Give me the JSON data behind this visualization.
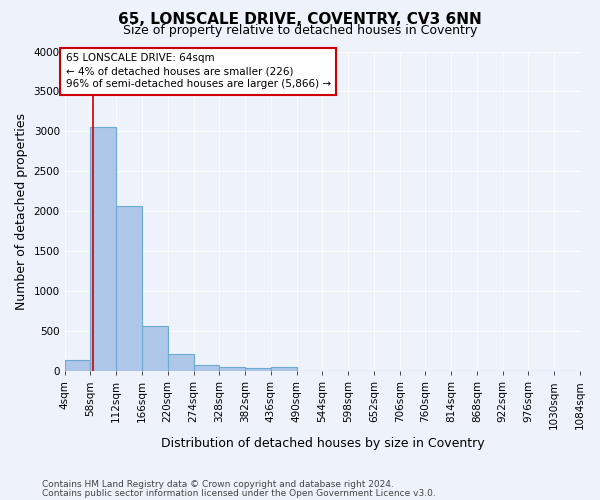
{
  "title1": "65, LONSCALE DRIVE, COVENTRY, CV3 6NN",
  "title2": "Size of property relative to detached houses in Coventry",
  "xlabel": "Distribution of detached houses by size in Coventry",
  "ylabel": "Number of detached properties",
  "footer1": "Contains HM Land Registry data © Crown copyright and database right 2024.",
  "footer2": "Contains public sector information licensed under the Open Government Licence v3.0.",
  "annotation_title": "65 LONSCALE DRIVE: 64sqm",
  "annotation_line2": "← 4% of detached houses are smaller (226)",
  "annotation_line3": "96% of semi-detached houses are larger (5,866) →",
  "bin_edges": [
    4,
    58,
    112,
    166,
    220,
    274,
    328,
    382,
    436,
    490,
    544,
    598,
    652,
    706,
    760,
    814,
    868,
    922,
    976,
    1030,
    1084
  ],
  "bar_values": [
    140,
    3060,
    2060,
    560,
    215,
    80,
    55,
    35,
    50,
    0,
    0,
    0,
    0,
    0,
    0,
    0,
    0,
    0,
    0,
    0
  ],
  "bar_color": "#aec6e8",
  "bar_edge_color": "#6aaad4",
  "vline_color": "#cc0000",
  "vline_x": 64,
  "annotation_box_edge_color": "#cc0000",
  "background_color": "#eef2fb",
  "ylim": [
    0,
    4000
  ],
  "yticks": [
    0,
    500,
    1000,
    1500,
    2000,
    2500,
    3000,
    3500,
    4000
  ],
  "title1_fontsize": 11,
  "title2_fontsize": 9,
  "axis_label_fontsize": 9,
  "tick_fontsize": 7.5,
  "footer_fontsize": 6.5
}
